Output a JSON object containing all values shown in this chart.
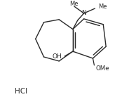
{
  "background_color": "#ffffff",
  "line_color": "#2a2a2a",
  "hcl_label": "HCl",
  "oh_label": "OH",
  "n_label": "N",
  "ome_label": "OMe",
  "me1_label": "Me",
  "me2_label": "Me",
  "figsize": [
    1.94,
    1.48
  ],
  "dpi": 100
}
